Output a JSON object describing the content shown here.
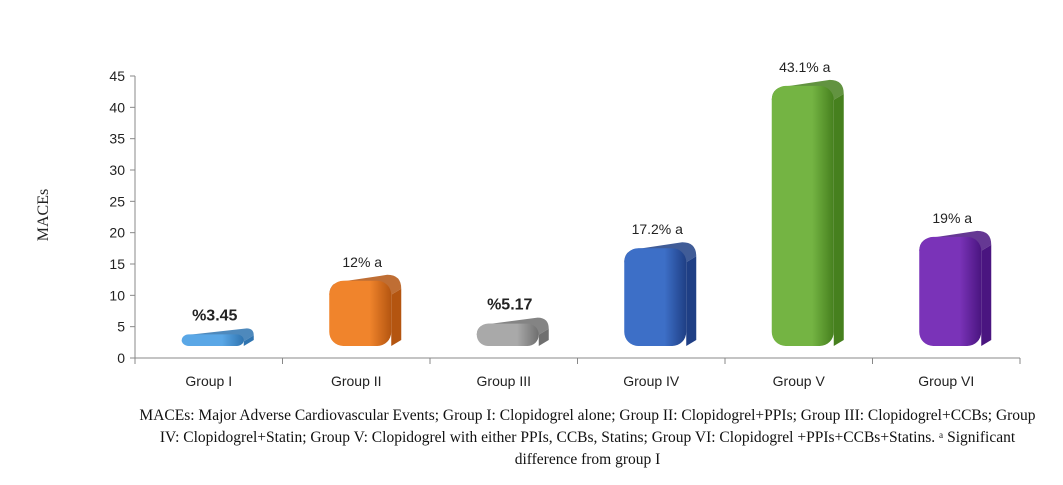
{
  "chart_data": {
    "type": "bar",
    "categories": [
      "Group I",
      "Group II",
      "Group III",
      "Group IV",
      "Group V",
      "Group VI"
    ],
    "values": [
      3.45,
      12,
      5.17,
      17.2,
      43.1,
      19
    ],
    "data_labels": [
      "%3.45",
      "12% a",
      "%5.17",
      "17.2% a",
      "43.1% a",
      "19% a"
    ],
    "bold_labels": [
      true,
      false,
      true,
      false,
      false,
      false
    ],
    "colors": [
      "#5aa7e6",
      "#f0842c",
      "#a9a9a9",
      "#3d6fc7",
      "#74b443",
      "#7a33b8"
    ],
    "dark_colors": [
      "#2f74b0",
      "#b45510",
      "#6f6f6f",
      "#1f3f85",
      "#46801e",
      "#4a1580"
    ],
    "ylabel": "MACEs",
    "xlabel": "",
    "ylim": [
      0,
      45
    ],
    "yticks": [
      0,
      5,
      10,
      15,
      20,
      25,
      30,
      35,
      40,
      45
    ],
    "grid": false
  },
  "caption": "MACEs: Major Adverse Cardiovascular Events; Group I: Clopidogrel alone; Group II: Clopidogrel+PPIs; Group III: Clopidogrel+CCBs; Group IV: Clopidogrel+Statin; Group V: Clopidogrel with either PPIs, CCBs, Statins; Group VI: Clopidogrel +PPIs+CCBs+Statins. ᵃ Significant difference from group I"
}
